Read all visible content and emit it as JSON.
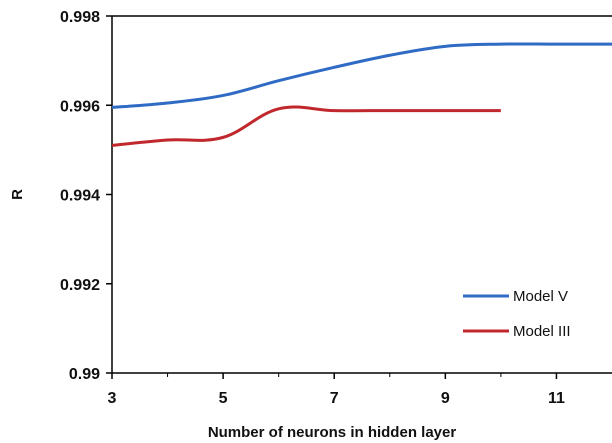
{
  "chart_data": {
    "type": "line",
    "xlabel": "Number of neurons in hidden layer",
    "ylabel": "R",
    "xlim": [
      3,
      12
    ],
    "ylim": [
      0.99,
      0.998
    ],
    "x_ticks": [
      3,
      5,
      7,
      9,
      11
    ],
    "x_tick_labels": [
      "3",
      "5",
      "7",
      "9",
      "11"
    ],
    "y_ticks": [
      0.99,
      0.992,
      0.994,
      0.996,
      0.998
    ],
    "y_tick_labels": [
      "0.99",
      "0.992",
      "0.994",
      "0.996",
      "0.998"
    ],
    "grid": false,
    "legend_position": "bottom-right",
    "series": [
      {
        "name": "Model V",
        "color": "#2f6bc4",
        "x": [
          3,
          4,
          5,
          6,
          7,
          8,
          9,
          10,
          11,
          12
        ],
        "values": [
          0.99595,
          0.99605,
          0.99622,
          0.99655,
          0.99685,
          0.99712,
          0.99732,
          0.99737,
          0.99737,
          0.99737
        ]
      },
      {
        "name": "Model III",
        "color": "#c0282d",
        "x": [
          3,
          4,
          5,
          6,
          7,
          8,
          9,
          10
        ],
        "values": [
          0.9951,
          0.99522,
          0.99528,
          0.99592,
          0.99588,
          0.99588,
          0.99588,
          0.99588
        ]
      }
    ]
  }
}
